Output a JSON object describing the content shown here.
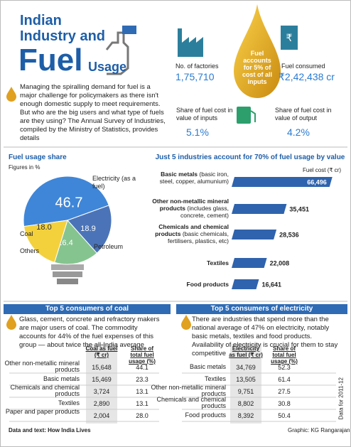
{
  "header": {
    "line1": "Indian",
    "line2": "Industry and",
    "line3": "Fuel",
    "line4": "Usage"
  },
  "stats": {
    "factories_label": "No. of factories",
    "factories_value": "1,75,710",
    "drop_text": "Fuel accounts for 5% of cost of all inputs",
    "fuel_label": "Fuel consumed",
    "fuel_value": "₹2,42,438 cr",
    "inputs_label": "Share of fuel cost in value of inputs",
    "inputs_value": "5.1%",
    "output_label": "Share of fuel cost in value of output",
    "output_value": "4.2%"
  },
  "intro": "Managing the spiralling demand for fuel is a major challenge for policymakers as there isn't enough domestic supply to meet requirements. But who are the big users and what type of fuels are they using? The Annual Survey of Industries, compiled by the Ministry of Statistics, provides details",
  "chart_data": [
    {
      "type": "pie",
      "title": "Fuel usage share",
      "subtitle": "Figures in %",
      "categories": [
        "Electricity (as a fuel)",
        "Petroleum",
        "Others",
        "Coal"
      ],
      "values": [
        46.7,
        18.9,
        16.4,
        18.0
      ],
      "value_labels": [
        "46.7",
        "18.9",
        "16.4",
        "18.0"
      ],
      "colors": [
        "#3f86d8",
        "#4b74b8",
        "#86c48f",
        "#f3d13d"
      ]
    },
    {
      "type": "bar",
      "orientation": "horizontal",
      "title": "Just 5 industries account for 70% of fuel usage by value",
      "axis_label": "Fuel cost (₹ cr)",
      "categories": [
        "Basic metals",
        "Other non-metallic mineral products",
        "Chemicals and chemical products",
        "Textiles",
        "Food products"
      ],
      "category_notes": {
        "0": "(basic iron, steel, copper, alumunium)",
        "1": "(includes glass, concrete, cement)",
        "2": "(basic chemicals, fertilisers, plastics, etc)"
      },
      "values": [
        66496,
        35451,
        28536,
        22008,
        16641
      ],
      "value_labels": [
        "66,496",
        "35,451",
        "28,536",
        "22,008",
        "16,641"
      ],
      "xlim": [
        0,
        70000
      ],
      "color": "#2f63ad"
    }
  ],
  "tables": [
    {
      "title": "Top 5 consumers of coal",
      "text": "Glass, cement, concrete and refractory makers are major users of coal. The commodity accounts for 44% of the fuel expenses of this group — about twice the all-India average",
      "columns": [
        "Coal as fuel (₹ cr)",
        "Share of total fuel usage (%)"
      ],
      "rows": [
        [
          "Other non-metallic mineral products",
          "15,648",
          "44.1"
        ],
        [
          "Basic metals",
          "15,469",
          "23.3"
        ],
        [
          "Chemicals and chemical products",
          "3,724",
          "13.1"
        ],
        [
          "Textiles",
          "2,890",
          "13.1"
        ],
        [
          "Paper and paper products",
          "2,004",
          "28.0"
        ]
      ]
    },
    {
      "title": "Top 5 consumers of electricity",
      "text": "There are industries that spend more than the national average of 47% on electricity, notably basic metals, textiles and food products. Availability of electricity is crucial for them to stay competitive",
      "columns": [
        "Electricity as fuel (₹ cr)",
        "Share of total fuel usage (%)"
      ],
      "rows": [
        [
          "Basic metals",
          "34,769",
          "52.3"
        ],
        [
          "Textiles",
          "13,505",
          "61.4"
        ],
        [
          "Other non-metallic mineral products",
          "9,751",
          "27.5"
        ],
        [
          "Chemicals and chemical products",
          "8,802",
          "30.8"
        ],
        [
          "Food products",
          "8,392",
          "50.4"
        ]
      ],
      "note": "Data for 2011-12"
    }
  ],
  "footer": {
    "source": "Data and text: How India Lives",
    "credit": "Graphic: KG Rangarajan"
  }
}
